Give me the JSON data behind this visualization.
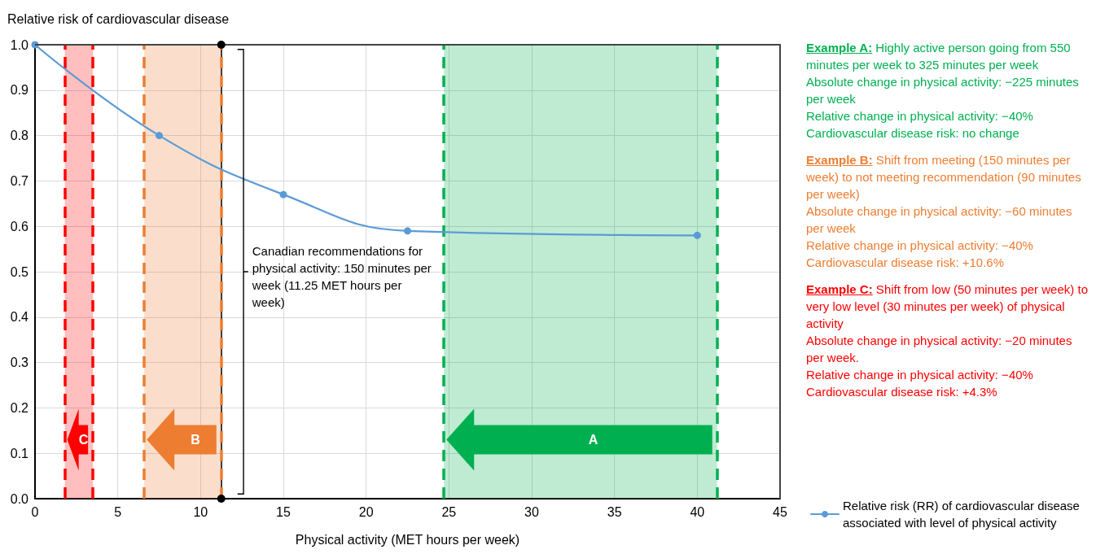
{
  "chart_data": {
    "type": "line",
    "xlabel": "Physical activity (MET hours per week)",
    "ylabel": "Relative risk of cardiovascular disease",
    "x": [
      0,
      7.5,
      15,
      22.5,
      40
    ],
    "series": [
      {
        "name": "Relative risk (RR) of cardiovascular disease associated with level of physical activity",
        "color": "#5b9bd5",
        "values": [
          1.0,
          0.8,
          0.67,
          0.59,
          0.58
        ]
      }
    ],
    "xlim": [
      0,
      45
    ],
    "xticks": [
      0,
      5,
      10,
      15,
      20,
      25,
      30,
      35,
      40,
      45
    ],
    "ylim": [
      0,
      1
    ],
    "yticks": [
      {
        "value": 0,
        "label": "0.0"
      },
      0.1,
      0.2,
      0.3,
      0.4,
      0.5,
      0.6,
      0.7,
      0.8,
      0.9,
      {
        "value": 1,
        "label": "1.0"
      }
    ],
    "grid": true,
    "marker": "circle",
    "line_style": "solid",
    "legend": "bottom right",
    "bands": [
      {
        "axis": "x",
        "from": 24.7,
        "to": 41.2,
        "label": "A",
        "color": "#00b050"
      },
      {
        "axis": "x",
        "from": 6.6,
        "to": 11.25,
        "label": "B",
        "color": "#ed7d31"
      },
      {
        "axis": "x",
        "from": 1.8,
        "to": 3.5,
        "label": "C",
        "color": "#ff0000"
      }
    ],
    "ref_lines": [
      {
        "axis": "x",
        "value": 11.25,
        "label": "Canadian recommendations for physical activity: 150 minutes per week (11.25 MET hours per week)",
        "color": "#000000"
      },
      {
        "axis": "x",
        "value": 24.7,
        "color": "#00b050",
        "line_style": "dashed"
      },
      {
        "axis": "x",
        "value": 41.2,
        "color": "#00b050",
        "line_style": "dashed"
      },
      {
        "axis": "x",
        "value": 6.6,
        "color": "#ed7d31",
        "line_style": "dashed"
      },
      {
        "axis": "x",
        "value": 11.25,
        "color": "#ed7d31",
        "line_style": "dashed"
      },
      {
        "axis": "x",
        "value": 1.8,
        "color": "#ff0000",
        "line_style": "dashed"
      },
      {
        "axis": "x",
        "value": 3.5,
        "color": "#ff0000",
        "line_style": "dashed"
      }
    ],
    "annotations": [
      "Example A: Highly active person going from 550 minutes per week to 325 minutes per week\nAbsolute change in physical activity: −225 minutes per week\nRelative change in physical activity: −40%\nCardiovascular disease risk: no change",
      "Example B: Shift from meeting (150 minutes per week) to not meeting recommendation (90 minutes per week)\nAbsolute change in physical activity: −60 minutes per week\nRelative change in physical activity: −40%\nCardiovascular disease risk: +10.6%",
      "Example C: Shift from low (50 minutes per week) to very low level (30 minutes per week) of physical activity\nAbsolute change in physical activity: −20 minutes per week.\nRelative change in physical activity: −40%\nCardiovascular disease risk: +4.3%"
    ]
  }
}
